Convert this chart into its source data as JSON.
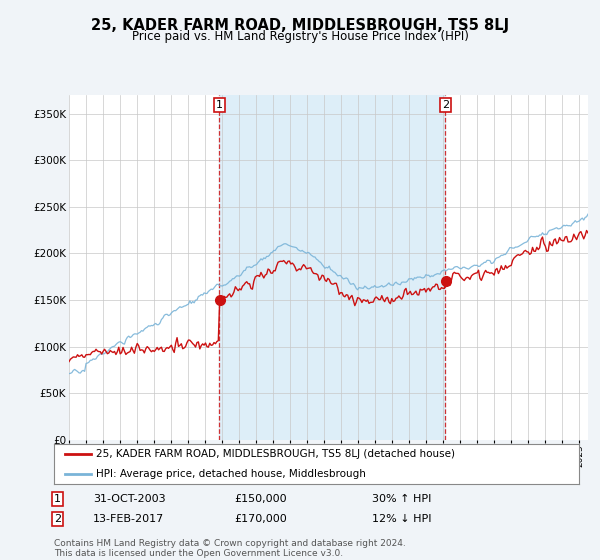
{
  "title": "25, KADER FARM ROAD, MIDDLESBROUGH, TS5 8LJ",
  "subtitle": "Price paid vs. HM Land Registry's House Price Index (HPI)",
  "ylim": [
    0,
    370000
  ],
  "yticks": [
    0,
    50000,
    100000,
    150000,
    200000,
    250000,
    300000,
    350000
  ],
  "ytick_labels": [
    "£0",
    "£50K",
    "£100K",
    "£150K",
    "£200K",
    "£250K",
    "£300K",
    "£350K"
  ],
  "sale1_year": 2003.83,
  "sale1_price": 150000,
  "sale2_year": 2017.12,
  "sale2_price": 170000,
  "legend_line1": "25, KADER FARM ROAD, MIDDLESBROUGH, TS5 8LJ (detached house)",
  "legend_line2": "HPI: Average price, detached house, Middlesbrough",
  "table_row1": [
    "1",
    "31-OCT-2003",
    "£150,000",
    "30% ↑ HPI"
  ],
  "table_row2": [
    "2",
    "13-FEB-2017",
    "£170,000",
    "12% ↓ HPI"
  ],
  "footnote": "Contains HM Land Registry data © Crown copyright and database right 2024.\nThis data is licensed under the Open Government Licence v3.0.",
  "hpi_color": "#7ab4d8",
  "price_color": "#cc1111",
  "vline_color": "#cc1111",
  "shade_color": "#ddeef8",
  "background_color": "#f0f4f8",
  "plot_bg": "#ffffff",
  "xmin": 1995,
  "xmax": 2025.5
}
